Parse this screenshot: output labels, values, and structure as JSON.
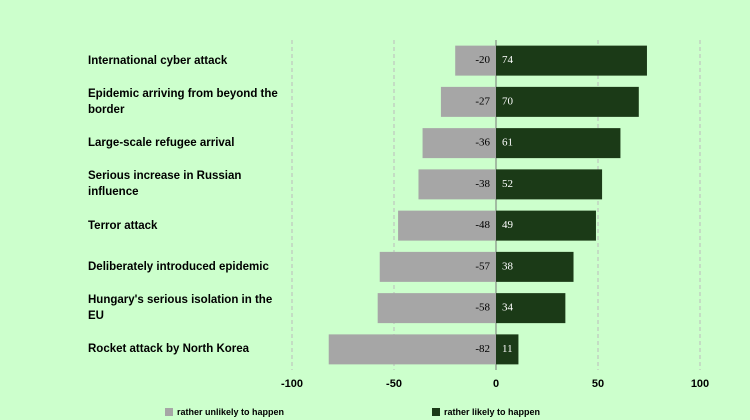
{
  "chart_data": {
    "type": "diverging-bar",
    "categories": [
      "International cyber attack",
      "Epidemic arriving from beyond the border",
      "Large-scale refugee arrival",
      "Serious increase in Russian influence",
      "Terror attack",
      "Deliberately introduced epidemic",
      "Hungary's serious isolation in the EU",
      "Rocket attack by North Korea"
    ],
    "series": [
      {
        "name": "rather unlikely to happen",
        "color": "#a6a6a6",
        "values": [
          -20,
          -27,
          -36,
          -38,
          -48,
          -57,
          -58,
          -82
        ]
      },
      {
        "name": "rather likely to happen",
        "color": "#1b3a17",
        "values": [
          74,
          70,
          61,
          52,
          49,
          38,
          34,
          11
        ]
      }
    ],
    "xlim": [
      -100,
      100
    ],
    "xticks": [
      -100,
      -50,
      0,
      50,
      100
    ],
    "grid": true
  }
}
